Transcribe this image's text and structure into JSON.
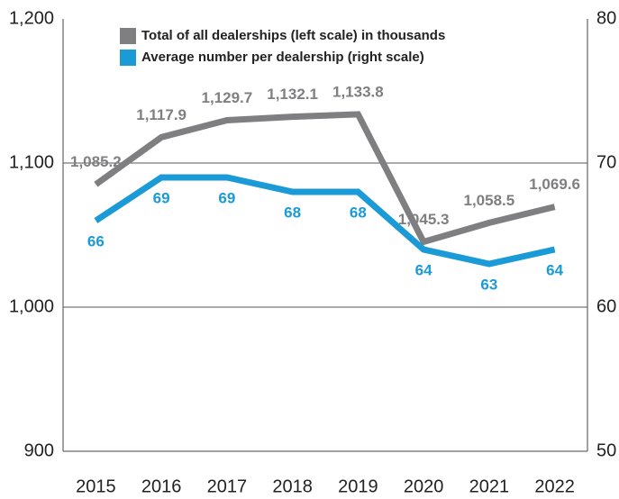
{
  "chart_data": {
    "type": "line",
    "categories": [
      "2015",
      "2016",
      "2017",
      "2018",
      "2019",
      "2020",
      "2021",
      "2022"
    ],
    "series": [
      {
        "name": "Total of all dealerships (left scale) in thousands",
        "color": "#7f7f82",
        "values": [
          1085.2,
          1117.9,
          1129.7,
          1132.1,
          1133.8,
          1045.3,
          1058.5,
          1069.6
        ],
        "value_labels": [
          "1,085.2",
          "1,117.9",
          "1,129.7",
          "1,132.1",
          "1,133.8",
          "1,045.3",
          "1,058.5",
          "1,069.6"
        ]
      },
      {
        "name": "Average number per dealership (right scale)",
        "color": "#1a9ad6",
        "axis": "y2",
        "values": [
          66,
          69,
          69,
          68,
          68,
          64,
          63,
          64
        ]
      }
    ],
    "ylim": [
      900,
      1200
    ],
    "yticks": [
      900,
      {
        "value": 1000,
        "label": "1,000"
      },
      {
        "value": 1100,
        "label": "1,100"
      },
      {
        "value": 1200,
        "label": "1,200"
      }
    ],
    "y2lim": [
      50,
      80
    ],
    "y2ticks": [
      50,
      60,
      70,
      80
    ],
    "grid": true,
    "legend": "top"
  }
}
